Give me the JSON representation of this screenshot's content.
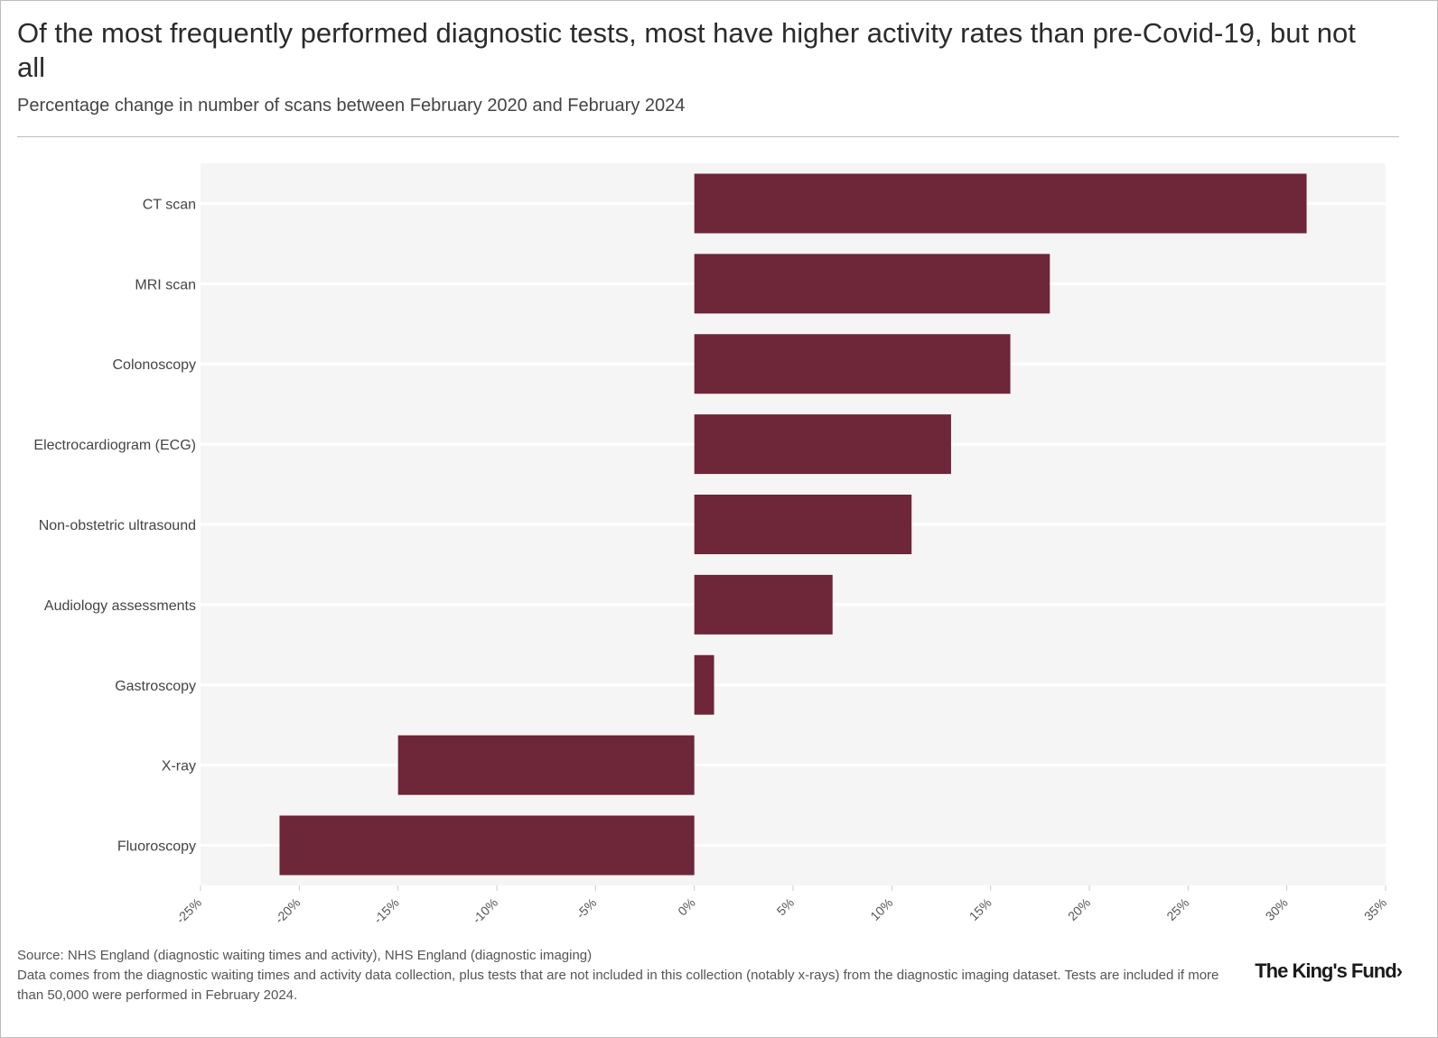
{
  "header": {
    "title": "Of the most frequently performed diagnostic tests, most have higher activity rates than pre-Covid-19, but not all",
    "subtitle": "Percentage change in number of scans between February 2020 and February 2024"
  },
  "footer": {
    "source": "Source: NHS England (diagnostic waiting times and activity), NHS England (diagnostic imaging)",
    "note": "Data comes from the diagnostic waiting times and activity data collection, plus tests that are not included in this collection (notably x-rays) from the diagnostic imaging dataset. Tests are included if more than 50,000 were performed in February 2024.",
    "logo": "The King's Fund›"
  },
  "colors": {
    "bar": "#6e2639",
    "plot_bg": "#f5f5f5",
    "gridline": "#ffffff"
  },
  "chart_data": {
    "type": "bar",
    "orientation": "horizontal",
    "title": "Of the most frequently performed diagnostic tests, most have higher activity rates than pre-Covid-19, but not all",
    "subtitle": "Percentage change in number of scans between February 2020 and February 2024",
    "categories": [
      "CT scan",
      "MRI scan",
      "Colonoscopy",
      "Electrocardiogram (ECG)",
      "Non-obstetric ultrasound",
      "Audiology assessments",
      "Gastroscopy",
      "X-ray",
      "Fluoroscopy"
    ],
    "values": [
      31,
      18,
      16,
      13,
      11,
      7,
      1,
      -15,
      -21
    ],
    "unit": "%",
    "xlim": [
      -25,
      35
    ],
    "xticks": [
      -25,
      -20,
      -15,
      -10,
      -5,
      0,
      5,
      10,
      15,
      20,
      25,
      30,
      35
    ],
    "xtick_labels": [
      "-25%",
      "-20%",
      "-15%",
      "-10%",
      "-5%",
      "0%",
      "5%",
      "10%",
      "15%",
      "20%",
      "25%",
      "30%",
      "35%"
    ],
    "xlabel": "",
    "ylabel": "",
    "grid": "horizontal",
    "legend": "none"
  }
}
